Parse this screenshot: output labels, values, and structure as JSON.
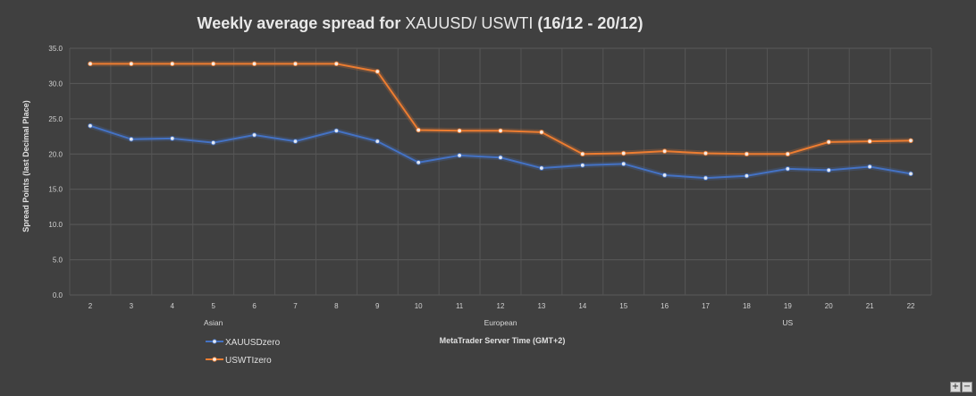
{
  "chart_data": {
    "type": "line",
    "title": "Weekly average spread for XAUUSD/ USWTI (16/12 - 20/12)",
    "title_parts": [
      "Weekly average spread for ",
      "XAUUSD/ USWTI",
      " (16/12 - 20/12)"
    ],
    "xlabel": "MetaTrader Server Time (GMT+2)",
    "ylabel": "Spread Points  (last Decimal Place)",
    "ylim": [
      0,
      35
    ],
    "yticks": [
      "0.0",
      "5.0",
      "10.0",
      "15.0",
      "20.0",
      "25.0",
      "30.0",
      "35.0"
    ],
    "x": [
      "2",
      "3",
      "4",
      "5",
      "6",
      "7",
      "8",
      "9",
      "10",
      "11",
      "12",
      "13",
      "14",
      "15",
      "16",
      "17",
      "18",
      "19",
      "20",
      "21",
      "22"
    ],
    "sessions": [
      {
        "label": "Asian",
        "at": "5"
      },
      {
        "label": "European",
        "at": "12"
      },
      {
        "label": "US",
        "at": "19"
      }
    ],
    "grid": true,
    "legend": "bottom-left",
    "series": [
      {
        "name": "XAUUSDzero",
        "color": "#4472c4",
        "values": [
          24.0,
          22.1,
          22.2,
          21.6,
          22.7,
          21.8,
          23.3,
          21.8,
          18.8,
          19.8,
          19.5,
          18.0,
          18.4,
          18.6,
          17.0,
          16.6,
          16.9,
          17.9,
          17.7,
          18.2,
          17.2
        ]
      },
      {
        "name": "USWTIzero",
        "color": "#ed7d31",
        "values": [
          32.8,
          32.8,
          32.8,
          32.8,
          32.8,
          32.8,
          32.8,
          31.7,
          23.4,
          23.3,
          23.3,
          23.1,
          20.0,
          20.1,
          20.4,
          20.1,
          20.0,
          20.0,
          21.7,
          21.8,
          21.9
        ]
      }
    ]
  },
  "controls": {
    "zoom_in": "+",
    "zoom_out": "−"
  }
}
